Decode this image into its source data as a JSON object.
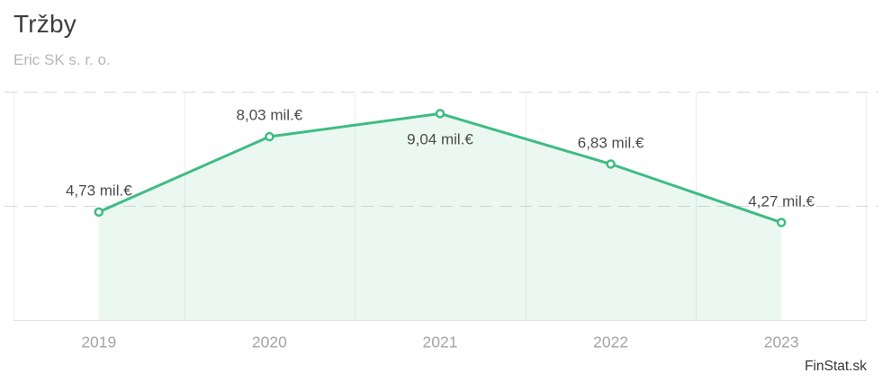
{
  "header": {
    "title": "Tržby",
    "subtitle": "Eric SK s. r. o."
  },
  "footer": {
    "brand": "FinStat.sk"
  },
  "chart_data": {
    "type": "area",
    "title": "Tržby",
    "subtitle": "Eric SK s. r. o.",
    "categories": [
      "2019",
      "2020",
      "2021",
      "2022",
      "2023"
    ],
    "series": [
      {
        "name": "Tržby",
        "values": [
          4.73,
          8.03,
          9.04,
          6.83,
          4.27
        ]
      }
    ],
    "point_labels": [
      "4,73 mil.€",
      "8,03 mil.€",
      "9,04 mil.€",
      "6,83 mil.€",
      "4,27 mil.€"
    ],
    "label_positions": [
      "above",
      "above",
      "below",
      "above",
      "above"
    ],
    "unit": "mil.€",
    "xlabel": "",
    "ylabel": "",
    "ylim": [
      0,
      10
    ],
    "gridlines_y": [
      5,
      10
    ],
    "grid": "dashed-horizontal",
    "legend": "none",
    "colors": {
      "line": "#3ebc82",
      "marker_fill": "#ffffff",
      "area_fill": "rgba(62,188,130,0.10)",
      "grid_dash": "#d8d8d8",
      "band_line": "#e9edf0",
      "axis_line": "#e3e3e3",
      "value_label": "#4b4b4b",
      "tick_label": "#a4a4a4",
      "title": "#3d3d3d",
      "subtitle": "#b6b6b6"
    }
  }
}
